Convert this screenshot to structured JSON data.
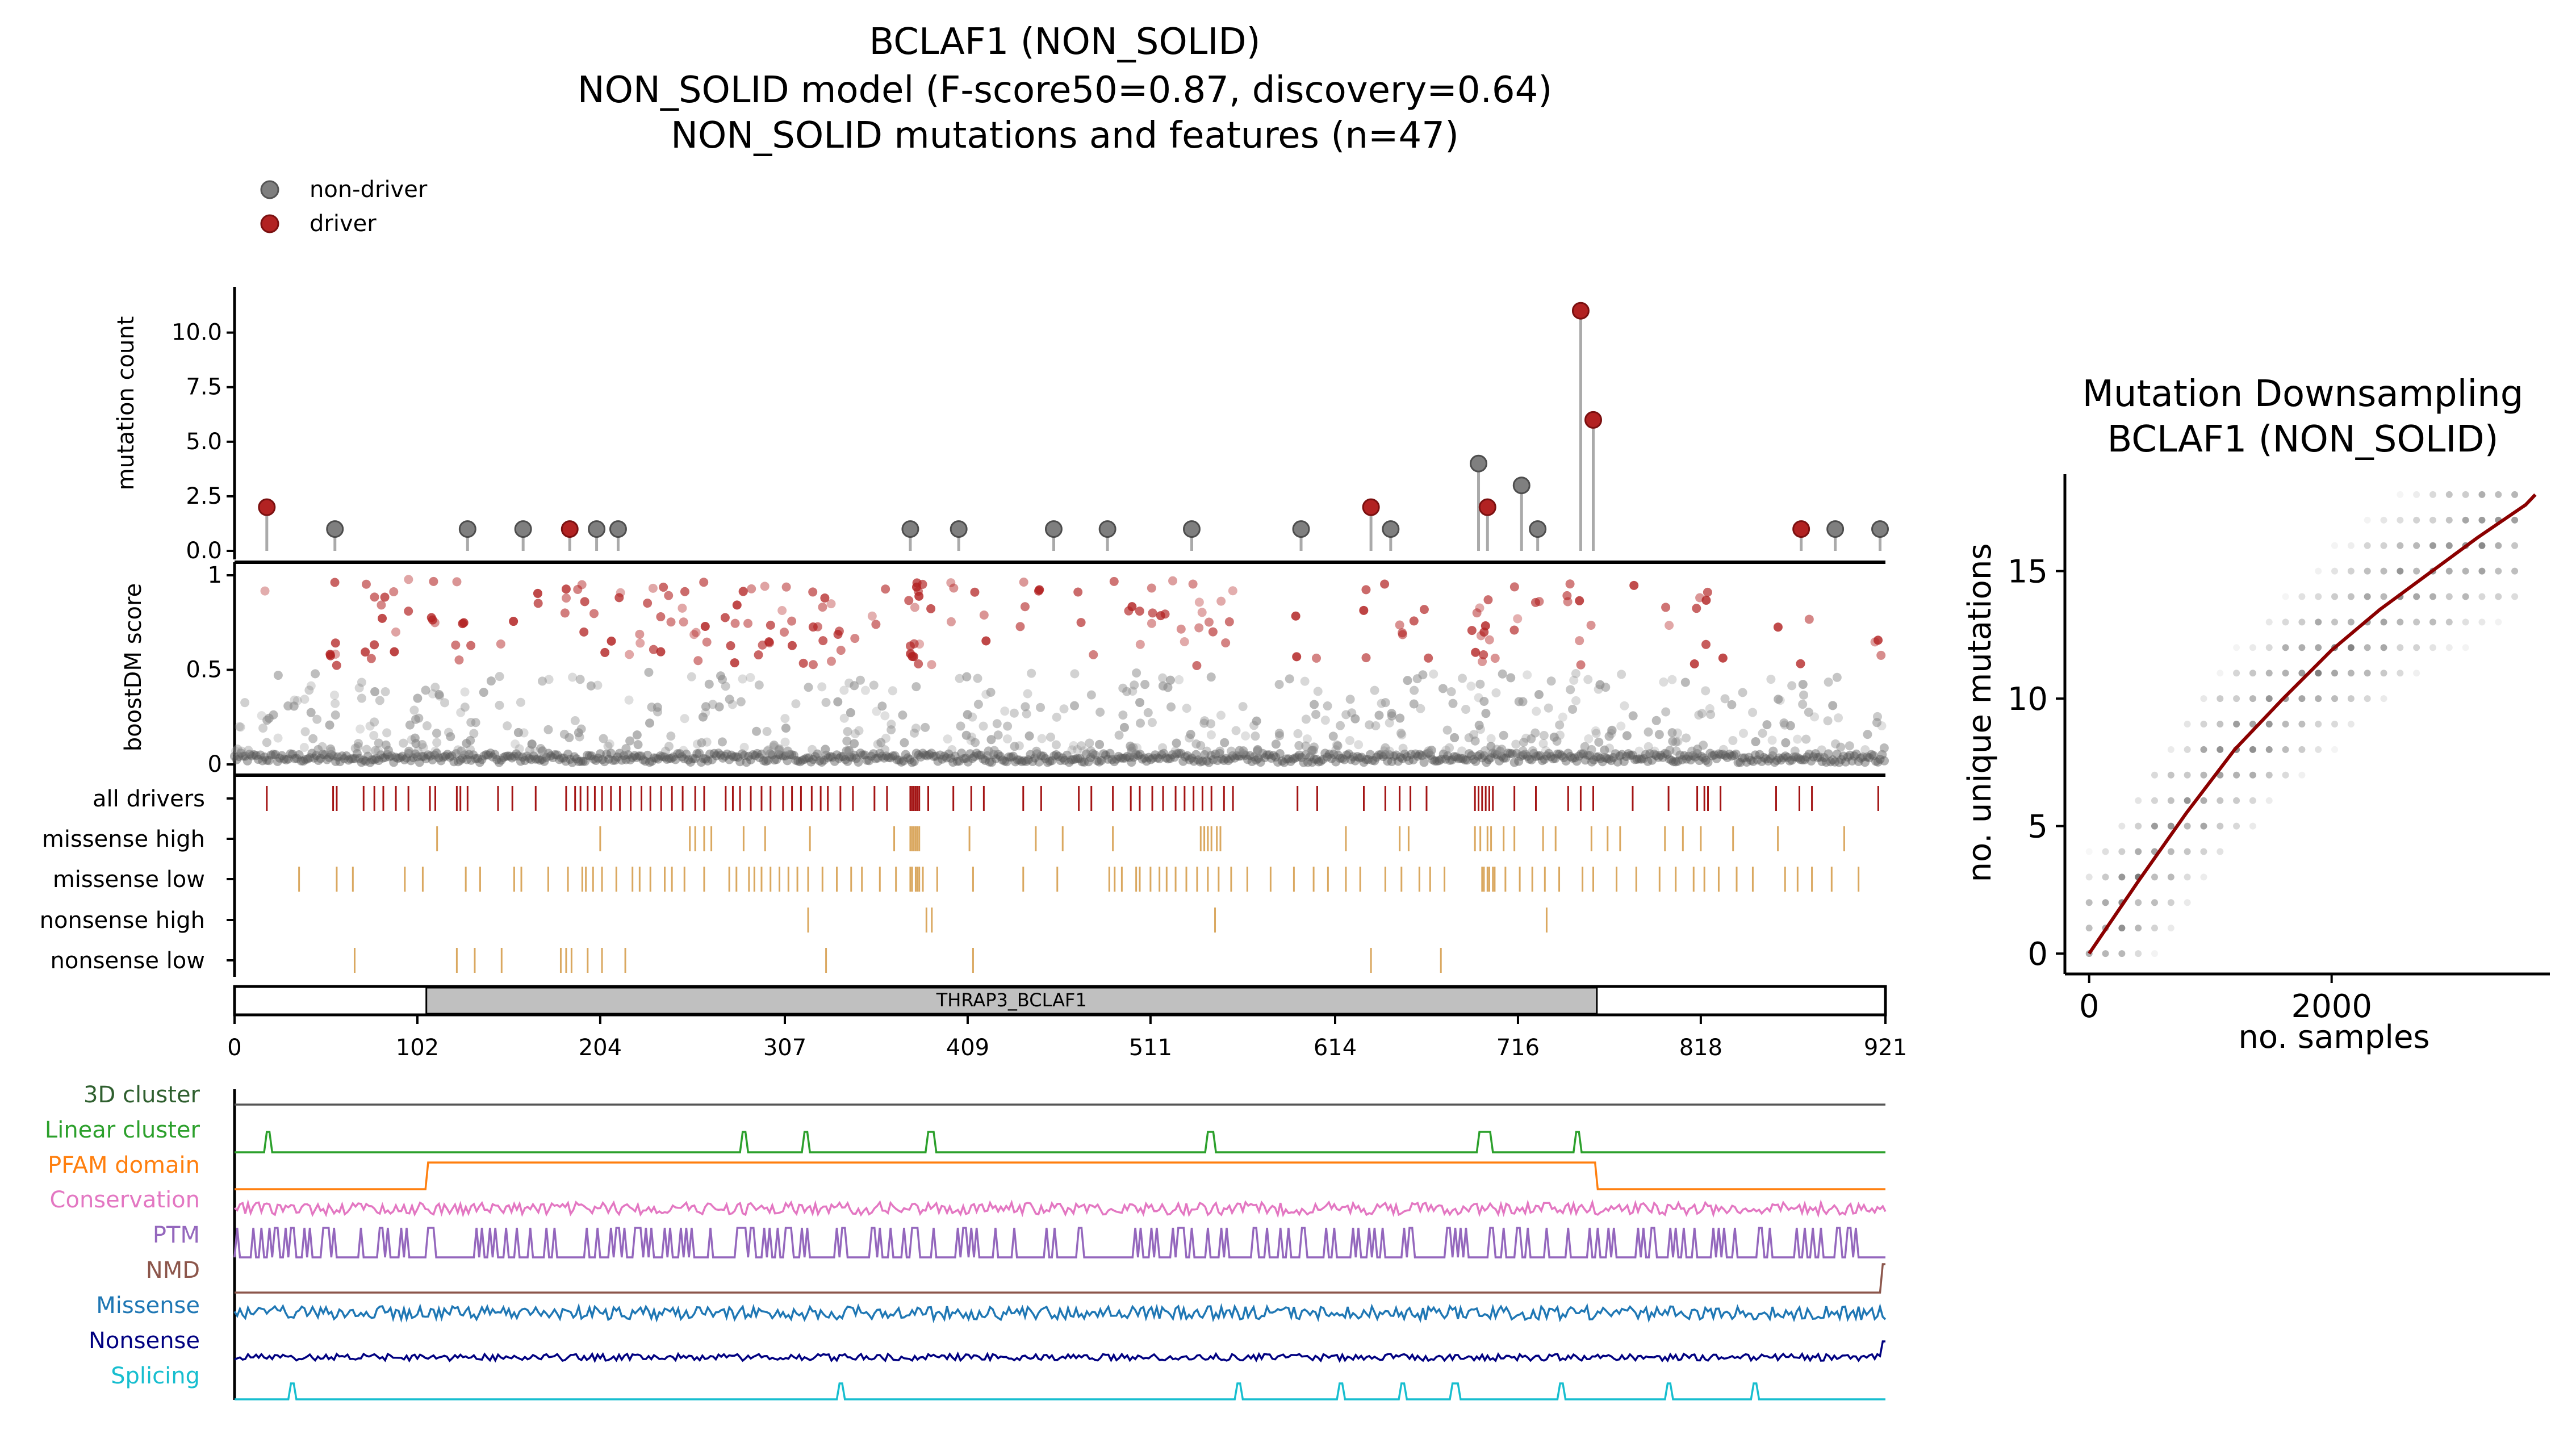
{
  "chart_data": [
    {
      "type": "scatter",
      "panel": "header",
      "title_lines": [
        "BCLAF1 (NON_SOLID)",
        "NON_SOLID model (F-score50=0.87, discovery=0.64)",
        "NON_SOLID mutations and features (n=47)"
      ],
      "legend": {
        "placement": "top-left",
        "entries": [
          {
            "label": "non-driver",
            "color": "#7f7f7f"
          },
          {
            "label": "driver",
            "color": "#b22222"
          }
        ]
      }
    },
    {
      "type": "lollipop",
      "panel": "mutation-count",
      "ylabel": "mutation count",
      "xlim": [
        0,
        921
      ],
      "ylim": [
        0,
        11.5
      ],
      "yticks": [
        "0.0",
        "2.5",
        "5.0",
        "7.5",
        "10.0"
      ],
      "points": [
        {
          "x": 18,
          "y": 2,
          "driver": true
        },
        {
          "x": 56,
          "y": 1,
          "driver": false
        },
        {
          "x": 130,
          "y": 1,
          "driver": false
        },
        {
          "x": 161,
          "y": 1,
          "driver": false
        },
        {
          "x": 187,
          "y": 1,
          "driver": true
        },
        {
          "x": 202,
          "y": 1,
          "driver": false
        },
        {
          "x": 214,
          "y": 1,
          "driver": false
        },
        {
          "x": 377,
          "y": 1,
          "driver": false
        },
        {
          "x": 404,
          "y": 1,
          "driver": false
        },
        {
          "x": 457,
          "y": 1,
          "driver": false
        },
        {
          "x": 487,
          "y": 1,
          "driver": false
        },
        {
          "x": 534,
          "y": 1,
          "driver": false
        },
        {
          "x": 595,
          "y": 1,
          "driver": false
        },
        {
          "x": 634,
          "y": 2,
          "driver": true
        },
        {
          "x": 645,
          "y": 1,
          "driver": false
        },
        {
          "x": 694,
          "y": 4,
          "driver": false
        },
        {
          "x": 699,
          "y": 2,
          "driver": true
        },
        {
          "x": 718,
          "y": 3,
          "driver": false
        },
        {
          "x": 727,
          "y": 1,
          "driver": false
        },
        {
          "x": 751,
          "y": 11,
          "driver": true
        },
        {
          "x": 758,
          "y": 6,
          "driver": true
        },
        {
          "x": 874,
          "y": 1,
          "driver": true
        },
        {
          "x": 893,
          "y": 1,
          "driver": false
        },
        {
          "x": 918,
          "y": 1,
          "driver": false
        }
      ]
    },
    {
      "type": "scatter",
      "panel": "boostdm-score",
      "ylabel": "boostDM score",
      "xlim": [
        0,
        921
      ],
      "ylim": [
        0,
        1
      ],
      "yticks": [
        "0",
        "0.5",
        "1"
      ],
      "note_points": "synthesized per-position scores; driver threshold 0.5"
    },
    {
      "type": "table",
      "panel": "consequence-tracks",
      "rows": [
        "all drivers",
        "missense high",
        "missense low",
        "nonsense high",
        "nonsense low"
      ],
      "positions": {
        "all drivers": [
          18,
          55,
          57,
          72,
          78,
          83,
          90,
          97,
          109,
          112,
          124,
          126,
          130,
          147,
          155,
          168,
          185,
          190,
          193,
          197,
          201,
          205,
          210,
          215,
          221,
          227,
          232,
          238,
          244,
          250,
          257,
          262,
          274,
          278,
          282,
          288,
          294,
          299,
          306,
          311,
          316,
          322,
          327,
          331,
          338,
          345,
          357,
          364,
          377,
          378,
          379,
          380,
          381,
          382,
          387,
          401,
          411,
          418,
          440,
          450,
          471,
          478,
          490,
          500,
          505,
          512,
          518,
          525,
          530,
          535,
          540,
          545,
          552,
          557,
          593,
          604,
          630,
          642,
          650,
          656,
          665,
          692,
          694,
          696,
          698,
          700,
          702,
          714,
          726,
          744,
          751,
          758,
          780,
          800,
          816,
          820,
          822,
          829,
          860,
          873,
          880,
          917
        ],
        "missense high": [
          113,
          204,
          254,
          257,
          262,
          266,
          284,
          296,
          321,
          368,
          377,
          378,
          379,
          380,
          381,
          382,
          410,
          447,
          462,
          490,
          539,
          541,
          543,
          545,
          548,
          550,
          620,
          650,
          655,
          692,
          695,
          699,
          701,
          708,
          714,
          730,
          737,
          757,
          766,
          773,
          798,
          808,
          818,
          836,
          861,
          898
        ],
        "missense low": [
          36,
          57,
          66,
          95,
          105,
          129,
          137,
          156,
          160,
          175,
          186,
          194,
          196,
          200,
          205,
          213,
          222,
          226,
          232,
          240,
          244,
          251,
          262,
          276,
          280,
          287,
          290,
          294,
          299,
          304,
          309,
          314,
          320,
          328,
          336,
          344,
          350,
          360,
          369,
          377,
          378,
          380,
          381,
          382,
          384,
          392,
          412,
          440,
          459,
          488,
          491,
          495,
          503,
          505,
          511,
          516,
          520,
          525,
          531,
          537,
          543,
          549,
          556,
          565,
          578,
          591,
          602,
          610,
          620,
          628,
          642,
          651,
          661,
          667,
          675,
          696,
          697,
          699,
          700,
          702,
          703,
          709,
          717,
          724,
          731,
          739,
          752,
          758,
          771,
          782,
          795,
          804,
          814,
          820,
          828,
          838,
          847,
          865,
          872,
          880,
          891,
          906
        ],
        "nonsense high": [
          320,
          386,
          389,
          547,
          732
        ],
        "nonsense low": [
          67,
          124,
          134,
          149,
          182,
          185,
          188,
          197,
          205,
          218,
          330,
          412,
          634,
          673
        ]
      },
      "domain_bar": {
        "label": "THRAP3_BCLAF1",
        "start": 107,
        "end": 760
      },
      "xticks": [
        "0",
        "102",
        "204",
        "307",
        "409",
        "511",
        "614",
        "716",
        "818",
        "921"
      ]
    },
    {
      "type": "line",
      "panel": "feature-tracks",
      "tracks": [
        {
          "label": "3D cluster",
          "color": "#2f5f2f"
        },
        {
          "label": "Linear cluster",
          "color": "#2ca02c"
        },
        {
          "label": "PFAM domain",
          "color": "#ff7f0e"
        },
        {
          "label": "Conservation",
          "color": "#e377c2"
        },
        {
          "label": "PTM",
          "color": "#9467bd"
        },
        {
          "label": "NMD",
          "color": "#8c564b"
        },
        {
          "label": "Missense",
          "color": "#1f77b4"
        },
        {
          "label": "Nonsense",
          "color": "#000080"
        },
        {
          "label": "Splicing",
          "color": "#17becf"
        }
      ],
      "linear_cluster_peaks": [
        [
          18,
          20
        ],
        [
          283,
          285
        ],
        [
          318,
          320
        ],
        [
          386,
          390
        ],
        [
          542,
          546
        ],
        [
          694,
          701
        ],
        [
          748,
          750
        ]
      ],
      "pfam_domain": [
        107,
        760
      ],
      "splicing_peaks": [
        32,
        338,
        560,
        617,
        652,
        681,
        740,
        800,
        848
      ]
    },
    {
      "type": "scatter",
      "panel": "downsampling",
      "title_lines": [
        "Mutation Downsampling",
        "BCLAF1 (NON_SOLID)"
      ],
      "xlabel": "no. samples",
      "ylabel": "no. unique mutations",
      "xlim": [
        -200,
        3800
      ],
      "ylim": [
        -0.8,
        18.8
      ],
      "xticks": [
        {
          "value": 0,
          "label": "0"
        },
        {
          "value": 2000,
          "label": "2000"
        }
      ],
      "yticks": [
        {
          "value": 0,
          "label": "0"
        },
        {
          "value": 5,
          "label": "5"
        },
        {
          "value": 10,
          "label": "10"
        },
        {
          "value": 15,
          "label": "15"
        }
      ],
      "curve_points": [
        [
          0,
          0
        ],
        [
          400,
          2.8
        ],
        [
          800,
          5.5
        ],
        [
          1200,
          8.0
        ],
        [
          1600,
          10.0
        ],
        [
          2000,
          11.9
        ],
        [
          2400,
          13.5
        ],
        [
          2800,
          14.9
        ],
        [
          3200,
          16.3
        ],
        [
          3600,
          17.6
        ],
        [
          3680,
          18.0
        ]
      ],
      "curve_color": "#8b0000"
    }
  ]
}
